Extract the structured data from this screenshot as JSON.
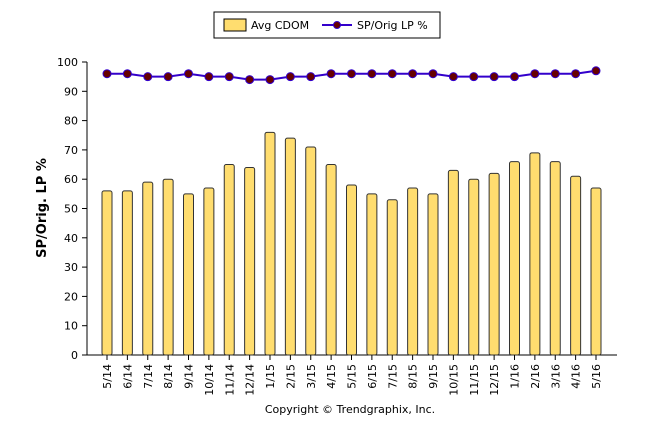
{
  "chart_data": {
    "type": "bar+line",
    "categories": [
      "5/14",
      "6/14",
      "7/14",
      "8/14",
      "9/14",
      "10/14",
      "11/14",
      "12/14",
      "1/15",
      "2/15",
      "3/15",
      "4/15",
      "5/15",
      "6/15",
      "7/15",
      "8/15",
      "9/15",
      "10/15",
      "11/15",
      "12/15",
      "1/16",
      "2/16",
      "3/16",
      "4/16",
      "5/16"
    ],
    "series": [
      {
        "name": "Avg CDOM",
        "type": "bar",
        "color": "#FFDD6F",
        "values": [
          56,
          56,
          59,
          60,
          55,
          57,
          65,
          64,
          76,
          74,
          71,
          65,
          58,
          55,
          53,
          57,
          55,
          63,
          60,
          62,
          66,
          69,
          66,
          61,
          57
        ]
      },
      {
        "name": "SP/Orig LP %",
        "type": "line",
        "color": "#3300CC",
        "marker_color": "#660000",
        "values": [
          96,
          96,
          95,
          95,
          96,
          95,
          95,
          94,
          94,
          95,
          95,
          96,
          96,
          96,
          96,
          96,
          96,
          95,
          95,
          95,
          95,
          96,
          96,
          96,
          97
        ]
      }
    ],
    "ylabel": "SP/Orig. LP %",
    "ylim": [
      0,
      100
    ],
    "yticks": [
      0,
      10,
      20,
      30,
      40,
      50,
      60,
      70,
      80,
      90,
      100
    ],
    "legend": "top-center",
    "grid": false
  },
  "footer": "Copyright © Trendgraphix, Inc."
}
